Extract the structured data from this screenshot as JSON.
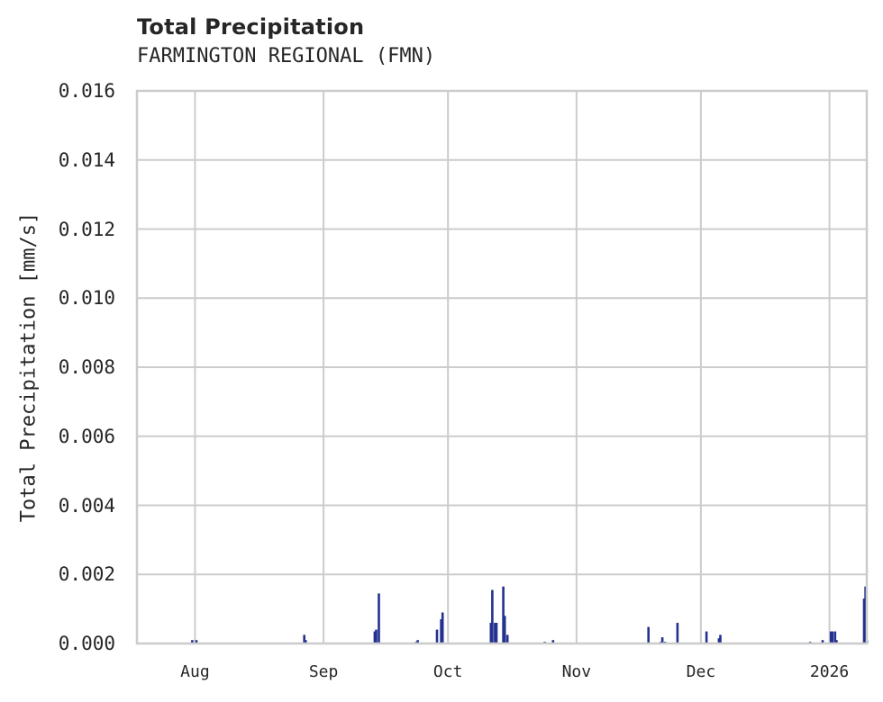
{
  "chart_data": {
    "type": "bar",
    "title": "Total Precipitation",
    "subtitle": "FARMINGTON REGIONAL (FMN)",
    "xlabel": "",
    "ylabel": "Total Precipitation [mm/s]",
    "ylim": [
      0,
      0.016
    ],
    "xlim": [
      "2025-07-18",
      "2026-01-10"
    ],
    "grid": true,
    "legend": null,
    "bar_color": "#24318f",
    "grid_color": "#cccccc",
    "yticks": [
      "0.000",
      "0.002",
      "0.004",
      "0.006",
      "0.008",
      "0.010",
      "0.012",
      "0.014",
      "0.016"
    ],
    "xticks": [
      {
        "label": "Aug",
        "date": "2025-08-01"
      },
      {
        "label": "Sep",
        "date": "2025-09-01"
      },
      {
        "label": "Oct",
        "date": "2025-10-01"
      },
      {
        "label": "Nov",
        "date": "2025-11-01"
      },
      {
        "label": "Dec",
        "date": "2025-12-01"
      },
      {
        "label": "2026",
        "date": "2026-01-01"
      }
    ],
    "series": [
      {
        "name": "Total Precipitation",
        "points": [
          {
            "date": "2025-07-31",
            "value": 0.0001
          },
          {
            "date": "2025-08-01",
            "value": 0.0001
          },
          {
            "date": "2025-08-27",
            "value": 0.00025
          },
          {
            "date": "2025-08-27",
            "value": 0.0001
          },
          {
            "date": "2025-09-13",
            "value": 0.00035
          },
          {
            "date": "2025-09-13",
            "value": 0.0004
          },
          {
            "date": "2025-09-14",
            "value": 0.00145
          },
          {
            "date": "2025-09-23",
            "value": 5e-05
          },
          {
            "date": "2025-09-23",
            "value": 0.0001
          },
          {
            "date": "2025-09-28",
            "value": 0.0004
          },
          {
            "date": "2025-09-29",
            "value": 0.0007
          },
          {
            "date": "2025-09-29",
            "value": 0.0009
          },
          {
            "date": "2025-10-11",
            "value": 0.0006
          },
          {
            "date": "2025-10-11",
            "value": 0.00155
          },
          {
            "date": "2025-10-12",
            "value": 0.0006
          },
          {
            "date": "2025-10-12",
            "value": 0.0006
          },
          {
            "date": "2025-10-14",
            "value": 0.00165
          },
          {
            "date": "2025-10-14",
            "value": 0.0008
          },
          {
            "date": "2025-10-15",
            "value": 0.00025
          },
          {
            "date": "2025-10-24",
            "value": 5e-05
          },
          {
            "date": "2025-10-26",
            "value": 0.0001
          },
          {
            "date": "2025-11-18",
            "value": 0.00048
          },
          {
            "date": "2025-11-21",
            "value": 5e-05
          },
          {
            "date": "2025-11-21",
            "value": 0.00018
          },
          {
            "date": "2025-11-22",
            "value": 5e-05
          },
          {
            "date": "2025-11-25",
            "value": 0.0006
          },
          {
            "date": "2025-12-02",
            "value": 0.00035
          },
          {
            "date": "2025-12-05",
            "value": 0.00015
          },
          {
            "date": "2025-12-05",
            "value": 0.00025
          },
          {
            "date": "2025-12-27",
            "value": 5e-05
          },
          {
            "date": "2025-12-30",
            "value": 0.0001
          },
          {
            "date": "2026-01-01",
            "value": 0.00035
          },
          {
            "date": "2026-01-01",
            "value": 0.00035
          },
          {
            "date": "2026-01-02",
            "value": 0.00035
          },
          {
            "date": "2026-01-02",
            "value": 0.0001
          },
          {
            "date": "2026-01-09",
            "value": 0.0013
          },
          {
            "date": "2026-01-09",
            "value": 0.00165
          },
          {
            "date": "2026-01-09",
            "value": 0.0001
          }
        ]
      }
    ]
  }
}
